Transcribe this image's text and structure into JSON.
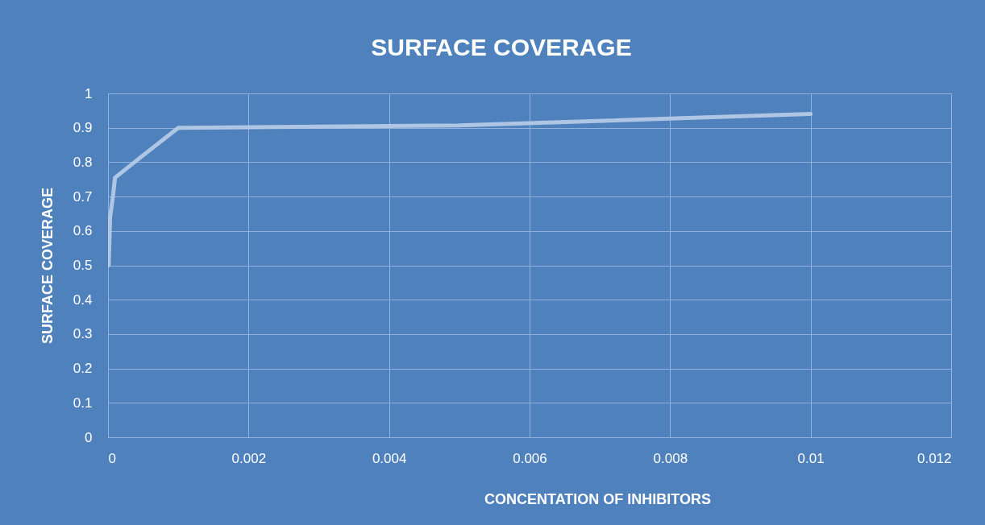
{
  "chart_data": {
    "type": "line",
    "title": "SURFACE COVERAGE",
    "xlabel": "CONCENTATION OF INHIBITORS",
    "ylabel": "SURFACE COVERAGE",
    "x": [
      1e-05,
      3e-05,
      7e-05,
      0.0001,
      0.0005,
      0.001,
      0.005,
      0.01
    ],
    "series": [
      {
        "color": "#b4c8e6",
        "values": [
          0.5,
          0.64,
          0.7,
          0.755,
          0.82,
          0.9,
          0.907,
          0.94
        ]
      }
    ],
    "xlim": [
      0,
      0.012
    ],
    "xticks": [
      0,
      0.002,
      0.004,
      0.006,
      0.008,
      0.01,
      0.012
    ],
    "ylim": [
      0,
      1
    ],
    "yticks": [
      0,
      0.1,
      0.2,
      0.3,
      0.4,
      0.5,
      0.6,
      0.7,
      0.8,
      0.9,
      1
    ],
    "grid": true,
    "marker": "none",
    "line_style": "solid"
  }
}
